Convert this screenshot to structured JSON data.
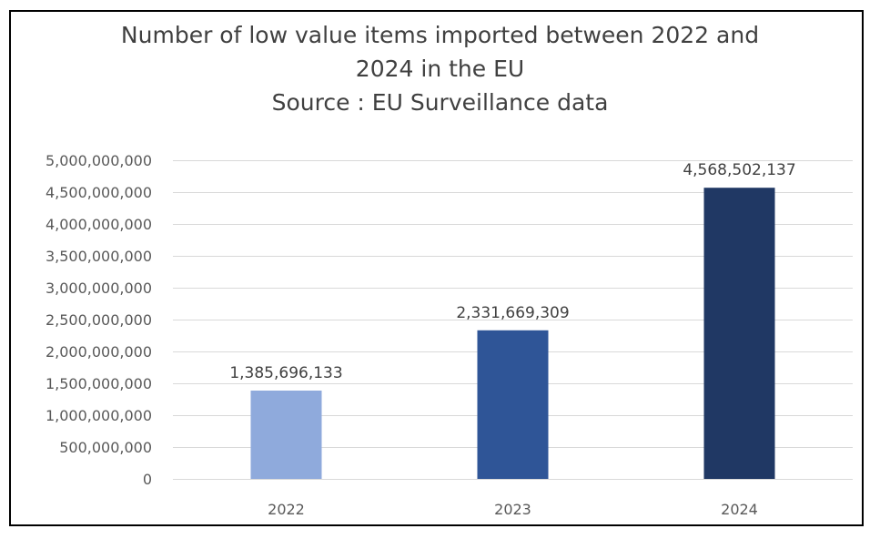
{
  "chart_data": {
    "type": "bar",
    "title": "Number of low value items imported between 2022 and 2024 in the EU",
    "title_lines": [
      "Number of low value items imported between 2022 and",
      "2024 in the EU",
      "Source : EU Surveillance data"
    ],
    "subtitle": "Source : EU Surveillance data",
    "categories": [
      "2022",
      "2023",
      "2024"
    ],
    "values": [
      1385696133,
      2331669309,
      4568502137
    ],
    "data_labels": [
      "1,385,696,133",
      "2,331,669,309",
      "4,568,502,137"
    ],
    "bar_colors": [
      "#8faadc",
      "#2f5597",
      "#203864"
    ],
    "ylim": [
      0,
      5000000000
    ],
    "yticks": [
      0,
      500000000,
      1000000000,
      1500000000,
      2000000000,
      2500000000,
      3000000000,
      3500000000,
      4000000000,
      4500000000,
      5000000000
    ],
    "ytick_labels": [
      "0",
      "500,000,000",
      "1,000,000,000",
      "1,500,000,000",
      "2,000,000,000",
      "2,500,000,000",
      "3,000,000,000",
      "3,500,000,000",
      "4,000,000,000",
      "4,500,000,000",
      "5,000,000,000"
    ],
    "xlabel": "",
    "ylabel": "",
    "grid": true,
    "legend": "none"
  }
}
